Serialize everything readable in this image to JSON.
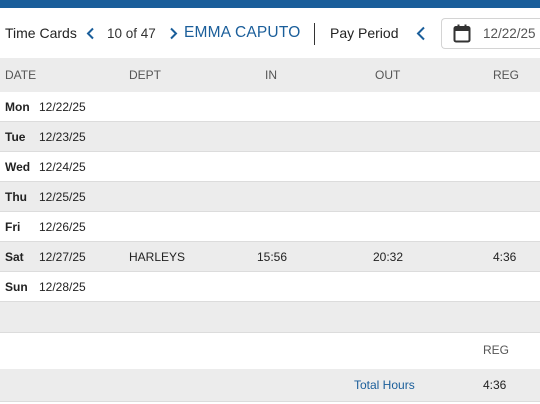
{
  "colors": {
    "accent": "#1a5e9a",
    "stripe": "#ececec"
  },
  "header": {
    "title": "Time Cards",
    "prev_icon": "chevron-left-icon",
    "counter": "10 of 47",
    "next_icon": "chevron-right-icon",
    "employee": "EMMA CAPUTO",
    "pay_period_label": "Pay Period",
    "pay_period_prev_icon": "chevron-left-icon",
    "calendar_icon": "calendar-icon",
    "date_value": "12/22/25"
  },
  "table": {
    "columns": [
      "DATE",
      "DEPT",
      "IN",
      "OUT",
      "REG"
    ],
    "rows": [
      {
        "day": "Mon",
        "date": "12/22/25",
        "dept": "",
        "in": "",
        "out": "",
        "reg": ""
      },
      {
        "day": "Tue",
        "date": "12/23/25",
        "dept": "",
        "in": "",
        "out": "",
        "reg": ""
      },
      {
        "day": "Wed",
        "date": "12/24/25",
        "dept": "",
        "in": "",
        "out": "",
        "reg": ""
      },
      {
        "day": "Thu",
        "date": "12/25/25",
        "dept": "",
        "in": "",
        "out": "",
        "reg": ""
      },
      {
        "day": "Fri",
        "date": "12/26/25",
        "dept": "",
        "in": "",
        "out": "",
        "reg": ""
      },
      {
        "day": "Sat",
        "date": "12/27/25",
        "dept": "HARLEYS",
        "in": "15:56",
        "out": "20:32",
        "reg": "4:36"
      },
      {
        "day": "Sun",
        "date": "12/28/25",
        "dept": "",
        "in": "",
        "out": "",
        "reg": ""
      }
    ]
  },
  "summary": {
    "reg_header": "REG",
    "total_label": "Total Hours",
    "total_reg": "4:36"
  }
}
